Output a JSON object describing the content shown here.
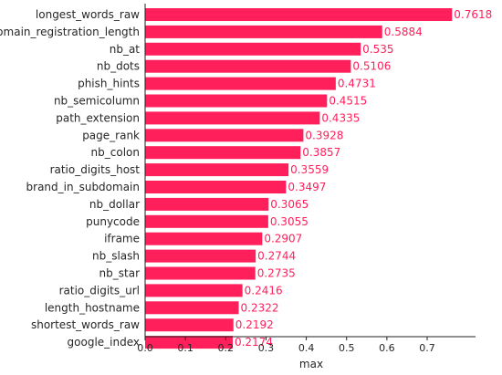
{
  "chart_data": {
    "type": "bar",
    "orientation": "horizontal",
    "title": "",
    "xlabel": "max",
    "ylabel": "",
    "xlim": [
      0,
      0.82
    ],
    "grid": false,
    "categories": [
      "longest_words_raw",
      "domain_registration_length",
      "nb_at",
      "nb_dots",
      "phish_hints",
      "nb_semicolumn",
      "path_extension",
      "page_rank",
      "nb_colon",
      "ratio_digits_host",
      "brand_in_subdomain",
      "nb_dollar",
      "punycode",
      "iframe",
      "nb_slash",
      "nb_star",
      "ratio_digits_url",
      "length_hostname",
      "shortest_words_raw",
      "google_index"
    ],
    "values": [
      0.7618,
      0.5884,
      0.535,
      0.5106,
      0.4731,
      0.4515,
      0.4335,
      0.3928,
      0.3857,
      0.3559,
      0.3497,
      0.3065,
      0.3055,
      0.2907,
      0.2744,
      0.2735,
      0.2416,
      0.2322,
      0.2192,
      0.2174
    ],
    "value_labels": [
      "0.7618",
      "0.5884",
      "0.535",
      "0.5106",
      "0.4731",
      "0.4515",
      "0.4335",
      "0.3928",
      "0.3857",
      "0.3559",
      "0.3497",
      "0.3065",
      "0.3055",
      "0.2907",
      "0.2744",
      "0.2735",
      "0.2416",
      "0.2322",
      "0.2192",
      "0.2174"
    ],
    "xticks": [
      "0.0",
      "0.1",
      "0.2",
      "0.3",
      "0.4",
      "0.5",
      "0.6",
      "0.7"
    ],
    "bar_color": "#ff1f5b",
    "label_color": "#ff1f5b",
    "axis_color": "#222222",
    "text_color": "#262626"
  }
}
